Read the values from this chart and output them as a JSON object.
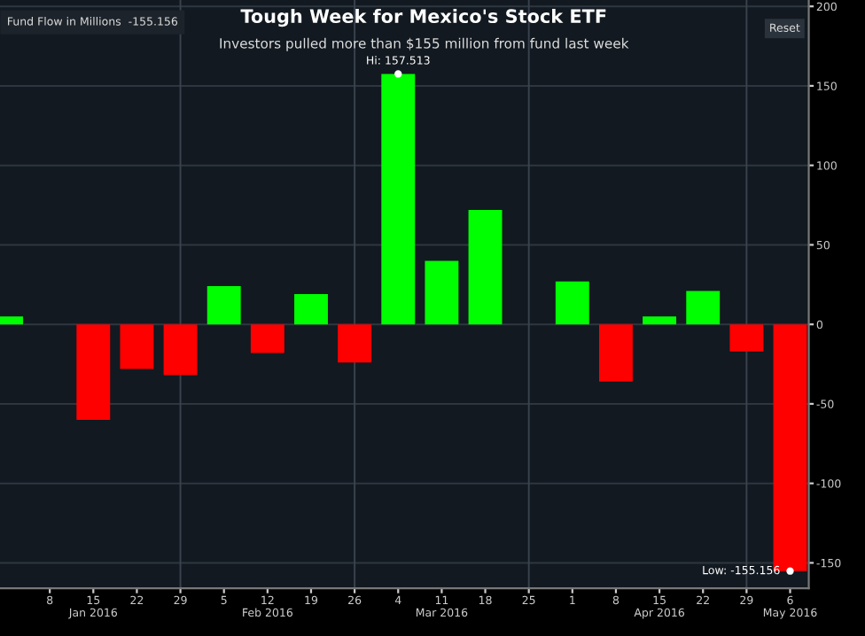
{
  "chart_data": {
    "type": "bar",
    "title": "Tough Week for Mexico's Stock ETF",
    "subtitle": "Investors pulled more than $155 million from fund last week",
    "x": [
      "2016-01-01",
      "2016-01-08",
      "2016-01-15",
      "2016-01-22",
      "2016-01-29",
      "2016-02-05",
      "2016-02-12",
      "2016-02-19",
      "2016-02-26",
      "2016-03-04",
      "2016-03-11",
      "2016-03-18",
      "2016-03-25",
      "2016-04-01",
      "2016-04-08",
      "2016-04-15",
      "2016-04-22",
      "2016-04-29",
      "2016-05-06"
    ],
    "values": [
      5,
      0,
      -60,
      -28,
      -32,
      24,
      -18,
      19,
      -24,
      157.513,
      40,
      72,
      0,
      27,
      -36,
      5,
      21,
      -17,
      -155.156
    ],
    "colors": [
      "#00ff00",
      "#00ff00",
      "#ff0000",
      "#ff0000",
      "#ff0000",
      "#00ff00",
      "#ff0000",
      "#00ff00",
      "#ff0000",
      "#00ff00",
      "#00ff00",
      "#00ff00",
      "#00ff00",
      "#00ff00",
      "#ff0000",
      "#00ff00",
      "#00ff00",
      "#ff0000",
      "#ff0000"
    ],
    "xlim": [
      "2015-12-31",
      "2016-05-09"
    ],
    "xticks": [
      {
        "value": "2016-01-08",
        "label": "8"
      },
      {
        "value": "2016-01-15",
        "label": "15\nJan 2016"
      },
      {
        "value": "2016-01-22",
        "label": "22"
      },
      {
        "value": "2016-01-29",
        "label": "29"
      },
      {
        "value": "2016-02-05",
        "label": "5"
      },
      {
        "value": "2016-02-12",
        "label": "12\nFeb 2016"
      },
      {
        "value": "2016-02-19",
        "label": "19"
      },
      {
        "value": "2016-02-26",
        "label": "26"
      },
      {
        "value": "2016-03-04",
        "label": "4"
      },
      {
        "value": "2016-03-11",
        "label": "11\nMar 2016"
      },
      {
        "value": "2016-03-18",
        "label": "18"
      },
      {
        "value": "2016-03-25",
        "label": "25"
      },
      {
        "value": "2016-04-01",
        "label": "1"
      },
      {
        "value": "2016-04-08",
        "label": "8"
      },
      {
        "value": "2016-04-15",
        "label": "15\nApr 2016"
      },
      {
        "value": "2016-04-22",
        "label": "22"
      },
      {
        "value": "2016-04-29",
        "label": "29"
      },
      {
        "value": "2016-05-06",
        "label": "6\nMay 2016"
      }
    ],
    "ylim": [
      -166,
      204
    ],
    "yticks": [
      -150,
      -100,
      -50,
      0,
      50,
      100,
      150,
      200
    ],
    "grid": "y",
    "ref_lines": [
      {
        "axis": "x",
        "value": "2016-01-29",
        "label": null,
        "color": "#3a434d"
      },
      {
        "axis": "x",
        "value": "2016-02-26",
        "label": null,
        "color": "#3a434d"
      },
      {
        "axis": "x",
        "value": "2016-03-25",
        "label": null,
        "color": "#3a434d"
      },
      {
        "axis": "x",
        "value": "2016-04-29",
        "label": null,
        "color": "#3a434d"
      }
    ],
    "annotations": [
      "Fund Flow in Millions  -155.156",
      "Reset",
      {
        "text": "Hi: 157.513",
        "x": "2016-03-04",
        "y": 157.513
      },
      {
        "text": "Low: -155.156",
        "x": "2016-05-06",
        "y": -155.156
      }
    ]
  }
}
